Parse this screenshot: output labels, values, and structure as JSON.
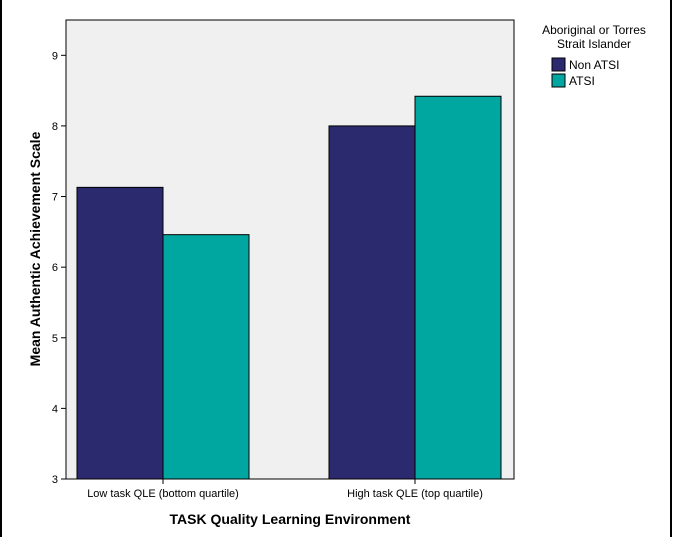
{
  "chart_data": {
    "type": "bar",
    "title": "",
    "xlabel": "TASK Quality Learning Environment",
    "ylabel": "Mean Authentic Achievement Scale",
    "categories": [
      "Low task QLE (bottom quartile)",
      "High task QLE (top quartile)"
    ],
    "series": [
      {
        "name": "Non ATSI",
        "values": [
          7.13,
          8.0
        ],
        "color": "#2b2a6e"
      },
      {
        "name": "ATSI",
        "values": [
          6.46,
          8.42
        ],
        "color": "#00a6a0"
      }
    ],
    "ylim": [
      3,
      9.5
    ],
    "yticks": [
      3,
      4,
      5,
      6,
      7,
      8,
      9
    ],
    "grid": false,
    "plot_background": "#f0f0f0",
    "legend": {
      "title": "Aboriginal or Torres Strait Islander",
      "title_lines": [
        "Aboriginal or Torres",
        "Strait Islander"
      ],
      "placement": "right-top"
    }
  }
}
